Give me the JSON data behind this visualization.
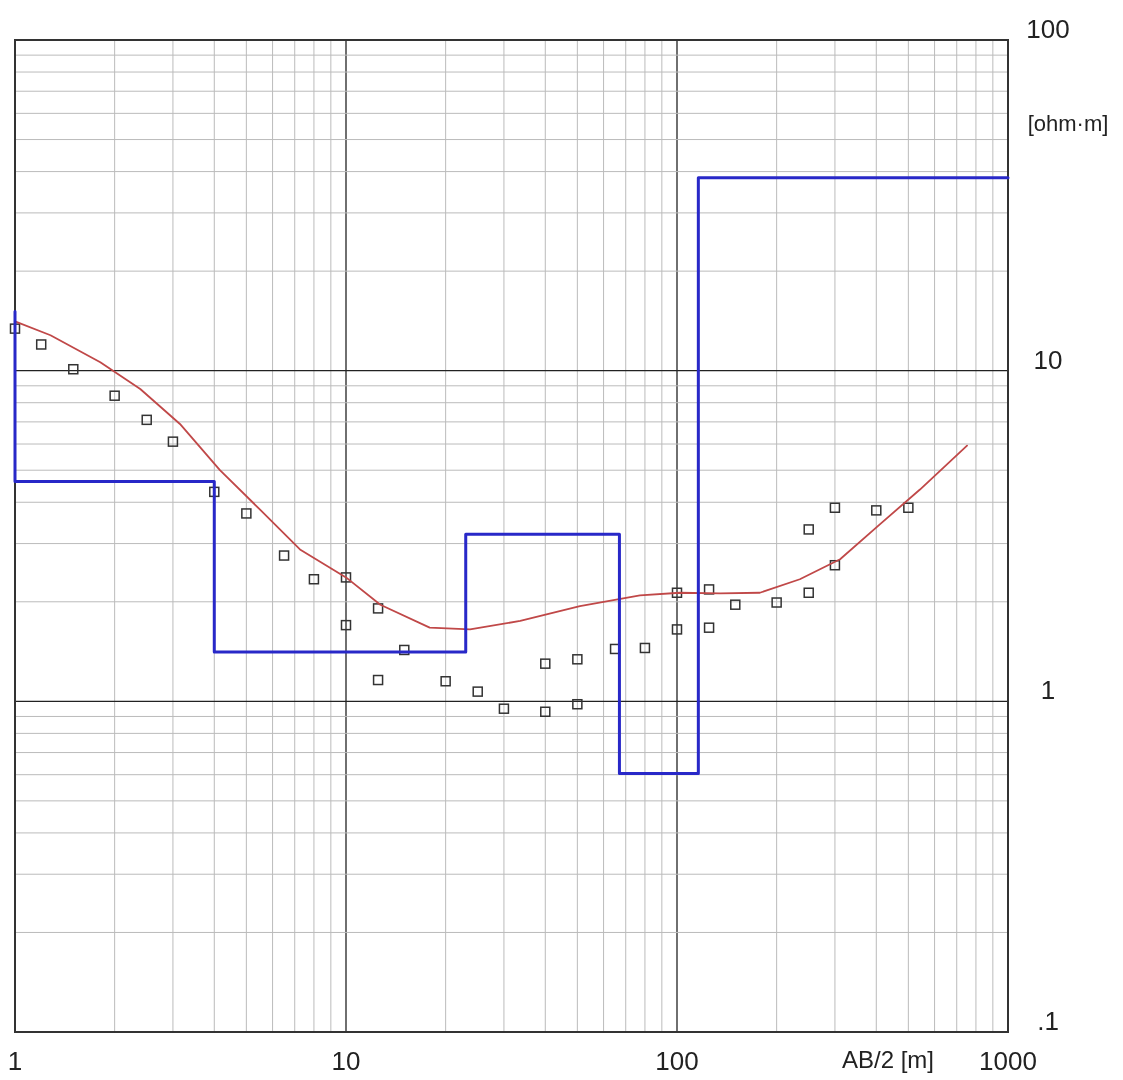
{
  "chart_data": {
    "type": "scatter",
    "xlabel": "AB/2 [m]",
    "ylabel": "[ohm·m]",
    "log": "xy",
    "grid": true,
    "xlim": [
      1,
      1000
    ],
    "ylim": [
      0.1,
      100
    ],
    "xticks": [
      1,
      {
        "value": 2,
        "label": null
      },
      {
        "value": 3,
        "label": null
      },
      {
        "value": 4,
        "label": null
      },
      {
        "value": 5,
        "label": null
      },
      {
        "value": 6,
        "label": null
      },
      {
        "value": 7,
        "label": null
      },
      {
        "value": 8,
        "label": null
      },
      {
        "value": 9,
        "label": null
      },
      10,
      {
        "value": 20,
        "label": null
      },
      {
        "value": 30,
        "label": null
      },
      {
        "value": 40,
        "label": null
      },
      {
        "value": 50,
        "label": null
      },
      {
        "value": 60,
        "label": null
      },
      {
        "value": 70,
        "label": null
      },
      {
        "value": 80,
        "label": null
      },
      {
        "value": 90,
        "label": null
      },
      100,
      {
        "value": 200,
        "label": null
      },
      {
        "value": 300,
        "label": null
      },
      {
        "value": 400,
        "label": null
      },
      {
        "value": 500,
        "label": null
      },
      {
        "value": 600,
        "label": null
      },
      {
        "value": 700,
        "label": null
      },
      {
        "value": 800,
        "label": null
      },
      {
        "value": 900,
        "label": null
      },
      1000
    ],
    "yticks": [
      {
        "value": 0.1,
        "label": ".1"
      },
      {
        "value": 0.2,
        "label": null
      },
      {
        "value": 0.3,
        "label": null
      },
      {
        "value": 0.4,
        "label": null
      },
      {
        "value": 0.5,
        "label": null
      },
      {
        "value": 0.6,
        "label": null
      },
      {
        "value": 0.7,
        "label": null
      },
      {
        "value": 0.8,
        "label": null
      },
      {
        "value": 0.9,
        "label": null
      },
      1,
      {
        "value": 2,
        "label": null
      },
      {
        "value": 3,
        "label": null
      },
      {
        "value": 4,
        "label": null
      },
      {
        "value": 5,
        "label": null
      },
      {
        "value": 6,
        "label": null
      },
      {
        "value": 7,
        "label": null
      },
      {
        "value": 8,
        "label": null
      },
      {
        "value": 9,
        "label": null
      },
      10,
      {
        "value": 20,
        "label": null
      },
      {
        "value": 30,
        "label": null
      },
      {
        "value": 40,
        "label": null
      },
      {
        "value": 50,
        "label": null
      },
      {
        "value": 60,
        "label": null
      },
      {
        "value": 70,
        "label": null
      },
      {
        "value": 80,
        "label": null
      },
      {
        "value": 90,
        "label": null
      },
      100
    ],
    "series": [
      {
        "marker": "square",
        "color": "#333333",
        "x": [
          1,
          1.2,
          1.5,
          2,
          2.5,
          3,
          4,
          5,
          6.5,
          8,
          10,
          10,
          12.5,
          12.5,
          15,
          20,
          25,
          30,
          40,
          40,
          50,
          50,
          65,
          80,
          100,
          100,
          125,
          125,
          150,
          200,
          250,
          250,
          300,
          300,
          400,
          500
        ],
        "values": [
          13.4,
          12,
          10.1,
          8.4,
          7.1,
          6.1,
          4.3,
          3.7,
          2.76,
          2.34,
          2.37,
          1.7,
          1.91,
          1.16,
          1.43,
          1.15,
          1.07,
          0.95,
          1.3,
          0.93,
          1.34,
          0.98,
          1.44,
          1.45,
          2.13,
          1.65,
          2.18,
          1.67,
          1.96,
          1.99,
          2.13,
          3.31,
          2.58,
          3.85,
          3.78,
          3.85
        ]
      },
      {
        "type": "line",
        "color": "#c04848",
        "x": [
          1,
          1.28,
          1.81,
          2.39,
          3.15,
          4.16,
          5.5,
          7.26,
          10,
          12.7,
          17.9,
          23.7,
          33.6,
          50.9,
          77.3,
          102,
          135,
          178,
          235,
          311,
          410,
          542,
          752
        ],
        "values": [
          14.1,
          12.8,
          10.6,
          8.8,
          6.9,
          5.0,
          3.8,
          2.88,
          2.37,
          1.96,
          1.67,
          1.65,
          1.75,
          1.94,
          2.09,
          2.13,
          2.12,
          2.13,
          2.34,
          2.69,
          3.43,
          4.37,
          5.93
        ]
      },
      {
        "type": "line",
        "color": "#2828c8",
        "x": [
          1,
          1,
          4,
          4,
          23,
          23,
          67,
          67,
          116,
          116,
          1000
        ],
        "values": [
          15.1,
          4.62,
          4.62,
          1.41,
          1.41,
          3.2,
          3.2,
          0.605,
          0.605,
          38.3,
          38.3
        ]
      }
    ]
  }
}
